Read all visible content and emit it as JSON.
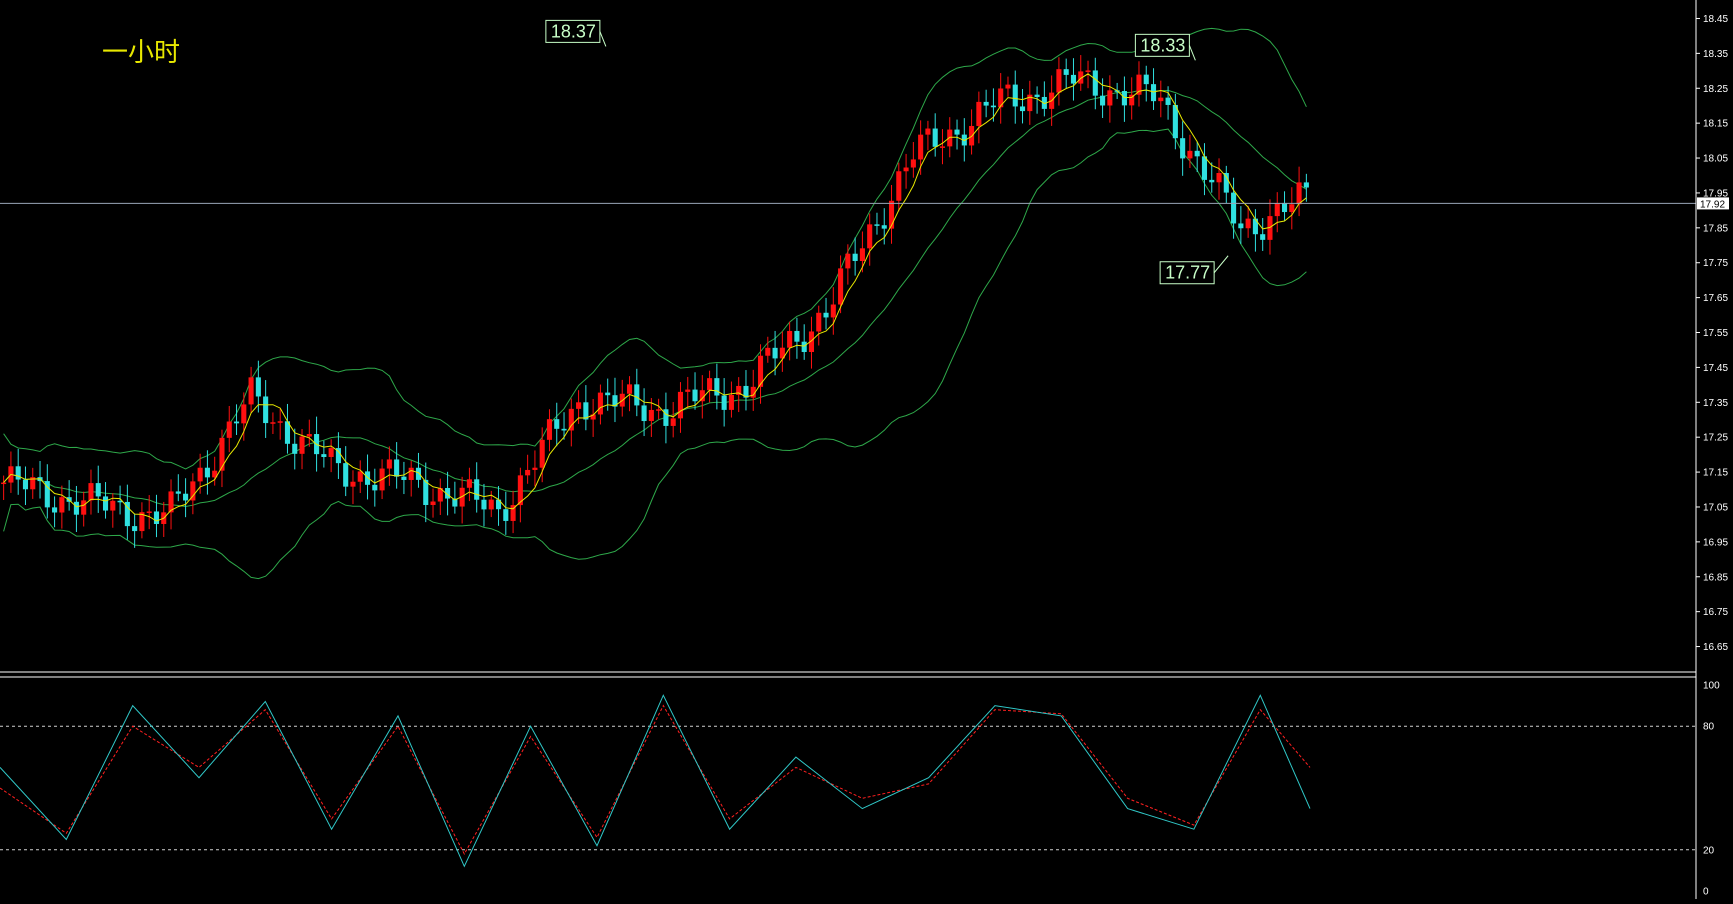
{
  "title": "一小时",
  "colors": {
    "background": "#000000",
    "frame": "#ffffff",
    "up_candle": "#ff1010",
    "down_candle": "#30e0e0",
    "bollinger": "#2ea84a",
    "ma_fast": "#e8e800",
    "stoch_main": "#30c8c8",
    "stoch_signal": "#ff2020",
    "price_line": "#9aa6b8",
    "callout": "#c8ffc8",
    "title": "#e8e800"
  },
  "price_axis": {
    "ticks": [
      "18.45",
      "18.35",
      "18.25",
      "18.15",
      "18.05",
      "17.95",
      "17.85",
      "17.75",
      "17.65",
      "17.55",
      "17.45",
      "17.35",
      "17.25",
      "17.15",
      "17.05",
      "16.95",
      "16.85",
      "16.75",
      "16.65"
    ],
    "current_price": "17.92"
  },
  "stoch_axis": {
    "ticks": [
      "100",
      "80",
      "20",
      "0"
    ]
  },
  "callouts": [
    {
      "text": "18.37",
      "price": 18.37,
      "bar": 37
    },
    {
      "text": "18.33",
      "price": 18.33,
      "bar": 73
    },
    {
      "text": "17.77",
      "price": 17.77,
      "bar": 75
    }
  ],
  "chart_data": [
    {
      "type": "line",
      "series": [
        {
          "name": "",
          "x": [
            0,
            5,
            10,
            15,
            20,
            25,
            30,
            35,
            40,
            45,
            50,
            55,
            60,
            65,
            70,
            75,
            79
          ],
          "y": [
            17.12,
            17.06,
            17.02,
            17.36,
            17.16,
            17.12,
            17.04,
            17.36,
            17.33,
            17.4,
            17.62,
            18.05,
            18.2,
            18.27,
            18.22,
            17.85,
            17.93
          ]
        }
      ],
      "x_labels": [],
      "ylim": [
        16.6,
        18.48
      ],
      "ytick_labels": [
        "18.45",
        "18.35",
        "18.25",
        "18.15",
        "18.05",
        "17.95",
        "17.85",
        "17.75",
        "17.65",
        "17.55",
        "17.45",
        "17.35",
        "17.25",
        "17.15",
        "17.05",
        "16.95",
        "16.85",
        "16.75",
        "16.65"
      ],
      "grid": false,
      "annotations": [
        "18.37",
        "18.33",
        "17.77",
        "17.92"
      ]
    },
    {
      "type": "line",
      "series": [
        {
          "name": "",
          "x": [
            0,
            4,
            8,
            12,
            16,
            20,
            24,
            28,
            32,
            36,
            40,
            44,
            48,
            52,
            56,
            60,
            64,
            68,
            72,
            76,
            79
          ],
          "y": [
            60,
            25,
            90,
            55,
            92,
            30,
            85,
            12,
            80,
            22,
            95,
            30,
            65,
            40,
            55,
            90,
            85,
            40,
            30,
            95,
            40
          ]
        },
        {
          "name": "",
          "x": [
            0,
            4,
            8,
            12,
            16,
            20,
            24,
            28,
            32,
            36,
            40,
            44,
            48,
            52,
            56,
            60,
            64,
            68,
            72,
            76,
            79
          ],
          "y": [
            50,
            28,
            80,
            60,
            88,
            35,
            80,
            18,
            75,
            26,
            90,
            35,
            60,
            45,
            52,
            88,
            86,
            45,
            32,
            88,
            60
          ]
        }
      ],
      "x_labels": [],
      "ylim": [
        0,
        100
      ],
      "ytick_labels": [
        "100",
        "80",
        "20",
        "0"
      ],
      "grid": false,
      "reference_lines": [
        80,
        20
      ]
    }
  ]
}
